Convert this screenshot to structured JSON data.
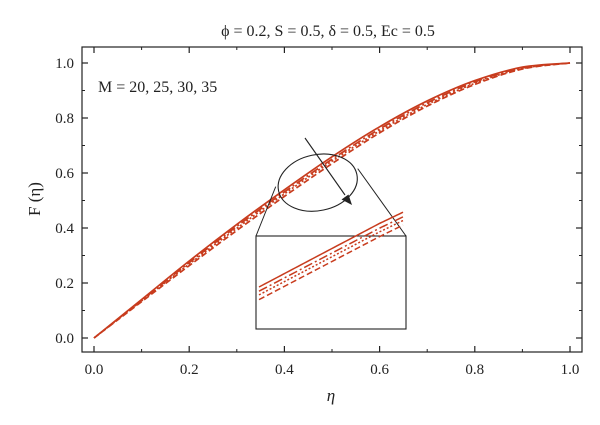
{
  "chart_data": {
    "type": "line",
    "title": "ϕ = 0.2, S = 0.5, δ = 0.5, Ec = 0.5",
    "xlabel": "η",
    "ylabel": "F (η)",
    "xlim": [
      0.0,
      1.0
    ],
    "ylim": [
      -0.05,
      1.05
    ],
    "x_ticks": [
      "0.0",
      "0.2",
      "0.4",
      "0.6",
      "0.8",
      "1.0"
    ],
    "y_ticks": [
      "0.0",
      "0.2",
      "0.4",
      "0.6",
      "0.8",
      "1.0"
    ],
    "annotation": "M = 20, 25, 30, 35",
    "grid": false,
    "line_color": "#c83c1e",
    "x": [
      0.0,
      0.1,
      0.2,
      0.3,
      0.4,
      0.5,
      0.6,
      0.7,
      0.8,
      0.9,
      1.0
    ],
    "series": [
      {
        "style": "solid",
        "values": [
          0.0,
          0.14,
          0.28,
          0.413,
          0.539,
          0.659,
          0.768,
          0.862,
          0.936,
          0.985,
          1.0
        ]
      },
      {
        "style": "dash-dot",
        "values": [
          0.0,
          0.137,
          0.274,
          0.406,
          0.531,
          0.65,
          0.76,
          0.855,
          0.931,
          0.982,
          1.0
        ]
      },
      {
        "style": "dotted",
        "values": [
          0.0,
          0.135,
          0.269,
          0.399,
          0.524,
          0.643,
          0.753,
          0.849,
          0.926,
          0.98,
          1.0
        ]
      },
      {
        "style": "dashed",
        "values": [
          0.0,
          0.132,
          0.263,
          0.391,
          0.515,
          0.634,
          0.746,
          0.843,
          0.922,
          0.978,
          1.0
        ]
      }
    ]
  }
}
